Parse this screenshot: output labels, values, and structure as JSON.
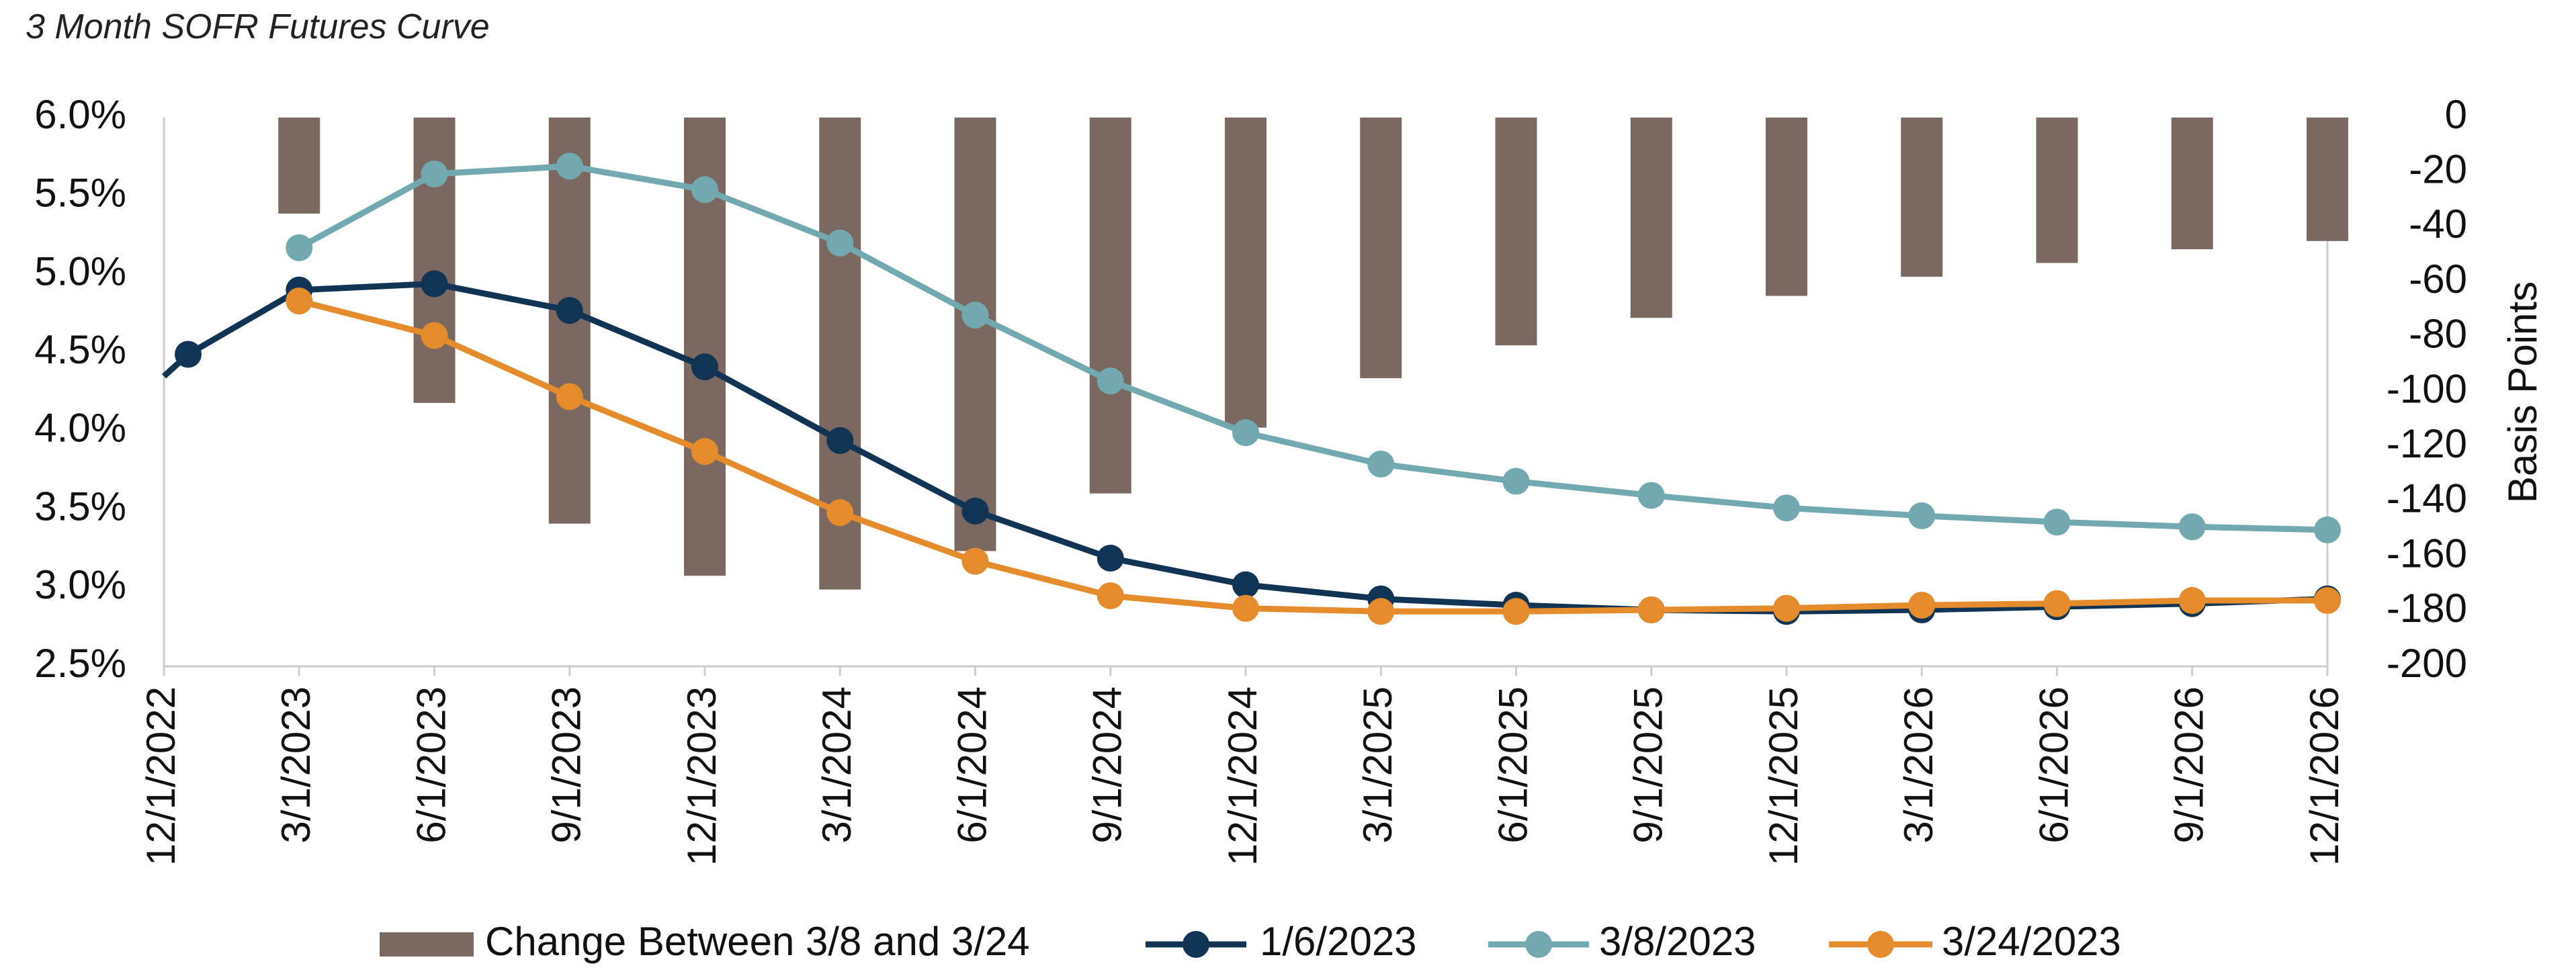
{
  "chart_data": {
    "type": "bar+line",
    "title": "3 Month SOFR Futures Curve",
    "xlabel": "",
    "ylabel_left": "",
    "ylabel_right": "Basis Points",
    "categories": [
      "12/1/2022",
      "3/1/2023",
      "6/1/2023",
      "9/1/2023",
      "12/1/2023",
      "3/1/2024",
      "6/1/2024",
      "9/1/2024",
      "12/1/2024",
      "3/1/2025",
      "6/1/2025",
      "9/1/2025",
      "12/1/2025",
      "3/1/2026",
      "6/1/2026",
      "9/1/2026",
      "12/1/2026"
    ],
    "y_left": {
      "min": 2.5,
      "max": 6.0,
      "ticks": [
        "2.5%",
        "3.0%",
        "3.5%",
        "4.0%",
        "4.5%",
        "5.0%",
        "5.5%",
        "6.0%"
      ]
    },
    "y_right": {
      "min": -200,
      "max": 0,
      "ticks": [
        "-200",
        "-180",
        "-160",
        "-140",
        "-120",
        "-100",
        "-80",
        "-60",
        "-40",
        "-20",
        "0"
      ]
    },
    "bars": {
      "name": "Change Between 3/8 and 3/24",
      "color": "#7a6861",
      "values": [
        null,
        -35,
        -104,
        -148,
        -167,
        -172,
        -158,
        -137,
        -113,
        -95,
        -83,
        -73,
        -65,
        -58,
        -53,
        -48,
        -45
      ]
    },
    "series": [
      {
        "name": "1/6/2023",
        "color": "#123454",
        "values": [
          4.49,
          4.9,
          4.94,
          4.77,
          4.41,
          3.94,
          3.49,
          3.19,
          3.02,
          2.93,
          2.89,
          2.86,
          2.85,
          2.86,
          2.88,
          2.9,
          2.93
        ],
        "lead_in": 4.35
      },
      {
        "name": "3/8/2023",
        "color": "#72a9b1",
        "values": [
          null,
          5.17,
          5.64,
          5.69,
          5.54,
          5.2,
          4.74,
          4.32,
          3.99,
          3.79,
          3.68,
          3.59,
          3.51,
          3.46,
          3.42,
          3.39,
          3.37
        ]
      },
      {
        "name": "3/24/2023",
        "color": "#e48b2c",
        "values": [
          null,
          4.83,
          4.61,
          4.22,
          3.87,
          3.48,
          3.17,
          2.95,
          2.87,
          2.85,
          2.85,
          2.86,
          2.87,
          2.89,
          2.9,
          2.92,
          2.92
        ]
      }
    ],
    "legend_position": "bottom",
    "grid": false
  }
}
